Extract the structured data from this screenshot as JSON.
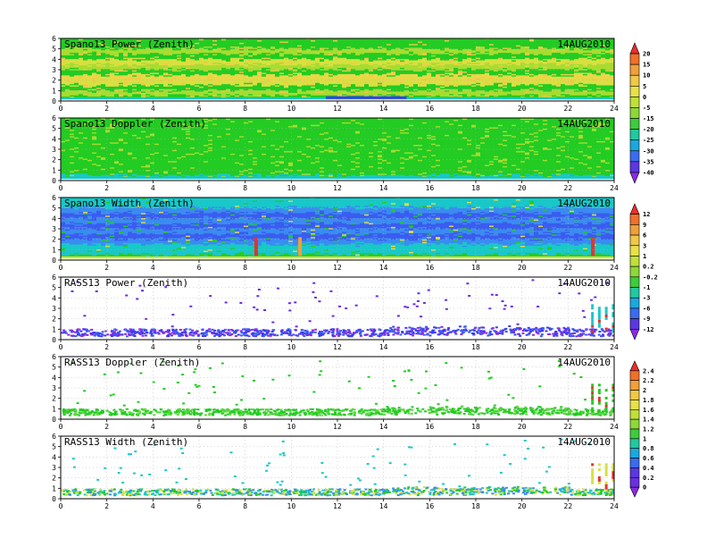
{
  "chart_data": [
    {
      "type": "heatmap",
      "title": "Spano13 Power (Zenith)",
      "date": "14AUG2010",
      "xlim": [
        0,
        24
      ],
      "ylim": [
        0,
        6
      ],
      "xticks": [
        0,
        2,
        4,
        6,
        8,
        10,
        12,
        14,
        16,
        18,
        20,
        22,
        24
      ],
      "yticks": [
        0,
        1,
        2,
        3,
        4,
        5,
        6
      ],
      "profile": [
        [
          0.5,
          "#22cc22"
        ],
        [
          1.0,
          "#a8dc30"
        ],
        [
          1.5,
          "#22cc22"
        ],
        [
          2.0,
          "#d8e040"
        ],
        [
          2.5,
          "#e8d848"
        ],
        [
          3.0,
          "#22cc22"
        ],
        [
          3.5,
          "#a8dc30"
        ],
        [
          4.0,
          "#d8e040"
        ],
        [
          4.5,
          "#22cc22"
        ],
        [
          5.0,
          "#a8dc30"
        ],
        [
          5.5,
          "#22cc22"
        ],
        [
          6.0,
          "#22cc22"
        ]
      ],
      "bottom_band": "#19c8c8"
    },
    {
      "type": "heatmap",
      "title": "Spano13 Doppler (Zenith)",
      "date": "14AUG2010",
      "xlim": [
        0,
        24
      ],
      "ylim": [
        0,
        6
      ],
      "xticks": [
        0,
        2,
        4,
        6,
        8,
        10,
        12,
        14,
        16,
        18,
        20,
        22,
        24
      ],
      "yticks": [
        0,
        1,
        2,
        3,
        4,
        5,
        6
      ],
      "profile": [
        [
          0.5,
          "#19c8c8"
        ],
        [
          1.0,
          "#22cc22"
        ],
        [
          6.0,
          "#22cc22"
        ]
      ],
      "bottom_band": "#19c8c8"
    },
    {
      "type": "heatmap",
      "title": "Spano13 Width (Zenith)",
      "date": "14AUG2010",
      "xlim": [
        0,
        24
      ],
      "ylim": [
        0,
        6
      ],
      "xticks": [
        0,
        2,
        4,
        6,
        8,
        10,
        12,
        14,
        16,
        18,
        20,
        22,
        24
      ],
      "yticks": [
        0,
        1,
        2,
        3,
        4,
        5,
        6
      ],
      "profile": [
        [
          0.5,
          "#22cc22"
        ],
        [
          1.0,
          "#19c8c8"
        ],
        [
          1.5,
          "#19c8c8"
        ],
        [
          2.0,
          "#3a8cf0"
        ],
        [
          2.5,
          "#3a5cf0"
        ],
        [
          3.0,
          "#3a8cf0"
        ],
        [
          3.5,
          "#3a5cf0"
        ],
        [
          4.0,
          "#3a8cf0"
        ],
        [
          4.5,
          "#3a5cf0"
        ],
        [
          5.0,
          "#3a8cf0"
        ],
        [
          5.5,
          "#19c8c8"
        ],
        [
          6.0,
          "#19c8c8"
        ]
      ],
      "bottom_band": "#d8e040"
    },
    {
      "type": "scatter",
      "title": "RASS13 Power (Zenith)",
      "date": "14AUG2010",
      "xlim": [
        0,
        24
      ],
      "ylim": [
        0,
        6
      ],
      "xticks": [
        0,
        2,
        4,
        6,
        8,
        10,
        12,
        14,
        16,
        18,
        20,
        22,
        24
      ],
      "yticks": [
        0,
        1,
        2,
        3,
        4,
        5,
        6
      ],
      "band": [
        0.4,
        1.1
      ],
      "band_colors": [
        "#3a3cf0",
        "#8a2be2",
        "#3a5cf0"
      ],
      "late_spikes": [
        23.0,
        23.3,
        23.6,
        23.9
      ],
      "late_color": "#19c8c8",
      "sparse_color": "#6a2ce0"
    },
    {
      "type": "scatter",
      "title": "RASS13 Doppler (Zenith)",
      "date": "14AUG2010",
      "xlim": [
        0,
        24
      ],
      "ylim": [
        0,
        6
      ],
      "xticks": [
        0,
        2,
        4,
        6,
        8,
        10,
        12,
        14,
        16,
        18,
        20,
        22,
        24
      ],
      "yticks": [
        0,
        1,
        2,
        3,
        4,
        5,
        6
      ],
      "band": [
        0.45,
        1.05
      ],
      "band_colors": [
        "#22cc22",
        "#60d840",
        "#22cc22"
      ],
      "late_spikes": [
        23.0,
        23.3,
        23.6,
        23.9
      ],
      "late_color": "#22cc22",
      "sparse_color": "#22cc22"
    },
    {
      "type": "scatter",
      "title": "RASS13 Width (Zenith)",
      "date": "14AUG2010",
      "xlim": [
        0,
        24
      ],
      "ylim": [
        0,
        6
      ],
      "xticks": [
        0,
        2,
        4,
        6,
        8,
        10,
        12,
        14,
        16,
        18,
        20,
        22,
        24
      ],
      "yticks": [
        0,
        1,
        2,
        3,
        4,
        5,
        6
      ],
      "band": [
        0.4,
        1.0
      ],
      "band_colors": [
        "#22cc22",
        "#19c8c8",
        "#d8e040",
        "#3a8cf0"
      ],
      "late_spikes": [
        23.0,
        23.3,
        23.6,
        23.9
      ],
      "late_color": "#d8e040",
      "sparse_color": "#19c8c8"
    }
  ],
  "colorbars": [
    {
      "labels": [
        "20",
        "15",
        "10",
        "5",
        "0",
        "-5",
        "-15",
        "-20",
        "-25",
        "-30",
        "-35",
        "-40"
      ],
      "colors": [
        "#e8302a",
        "#f0702a",
        "#f0a03a",
        "#f0c848",
        "#e8e048",
        "#c0e038",
        "#8ed838",
        "#3ccc3c",
        "#22c8a0",
        "#1aa8e0",
        "#3a6cf0",
        "#5a38e0",
        "#8a2be2"
      ]
    },
    {
      "labels": [
        "12",
        "9",
        "6",
        "3",
        "1",
        "0.2",
        "-0.2",
        "-1",
        "-3",
        "-6",
        "-9",
        "-12"
      ],
      "colors": [
        "#e8302a",
        "#f0702a",
        "#f0a03a",
        "#f0c848",
        "#e8e048",
        "#c0e038",
        "#8ed838",
        "#3ccc3c",
        "#22c8a0",
        "#1aa8e0",
        "#3a6cf0",
        "#5a38e0",
        "#8a2be2"
      ]
    },
    {
      "labels": [
        "2.4",
        "2.2",
        "2",
        "1.8",
        "1.6",
        "1.4",
        "1.2",
        "1",
        "0.8",
        "0.6",
        "0.4",
        "0.2",
        "0"
      ],
      "colors": [
        "#e8302a",
        "#f0702a",
        "#f0a03a",
        "#f0c848",
        "#e8e048",
        "#c0e038",
        "#8ed838",
        "#3ccc3c",
        "#22c8a0",
        "#1aa8e0",
        "#3a6cf0",
        "#5a38e0",
        "#6a30e0",
        "#8a2be2"
      ]
    }
  ]
}
